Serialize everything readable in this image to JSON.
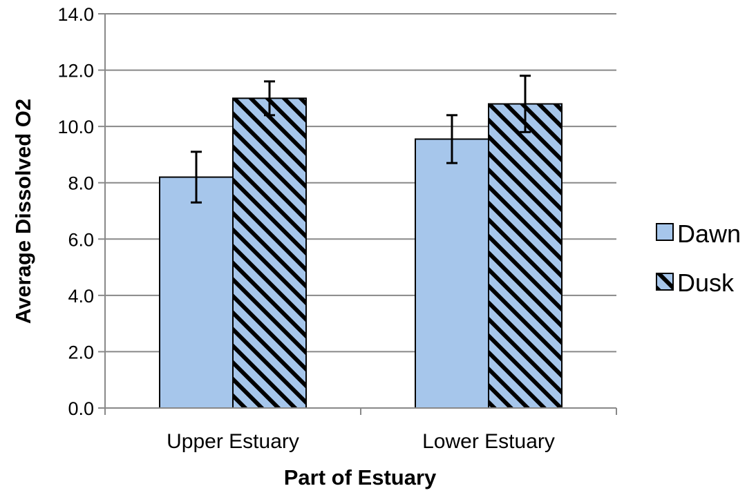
{
  "chart_data": {
    "type": "bar",
    "title": "",
    "xlabel": "Part of Estuary",
    "ylabel": "Average Dissolved O2",
    "categories": [
      "Upper Estuary",
      "Lower Estuary"
    ],
    "series": [
      {
        "name": "Dawn",
        "values": [
          8.2,
          9.55
        ],
        "error": [
          0.9,
          0.85
        ],
        "fill": "#a6c6eb",
        "pattern": "solid"
      },
      {
        "name": "Dusk",
        "values": [
          11.0,
          10.8
        ],
        "error": [
          0.6,
          1.0
        ],
        "fill": "#a6c6eb",
        "pattern": "diagonal-hatch"
      }
    ],
    "ylim": [
      0,
      14
    ],
    "yticks": [
      0,
      2,
      4,
      6,
      8,
      10,
      12,
      14
    ],
    "ytick_labels": [
      "0.0",
      "2.0",
      "4.0",
      "6.0",
      "8.0",
      "10.0",
      "12.0",
      "14.0"
    ],
    "grid": true,
    "legend": "right"
  },
  "colors": {
    "bar_fill": "#a6c6eb",
    "gridline": "#888888",
    "axis": "#888888",
    "text": "#000000"
  }
}
